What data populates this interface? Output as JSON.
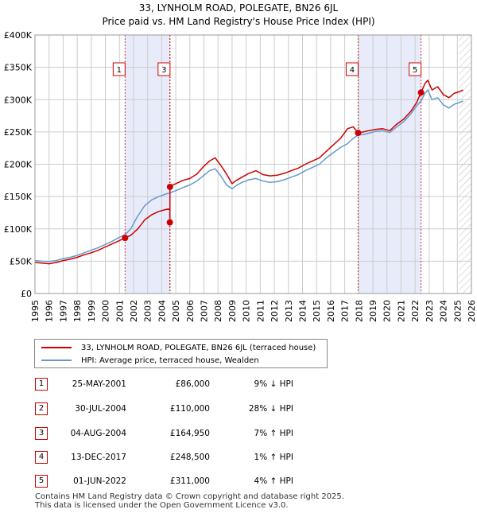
{
  "chart_data": {
    "type": "line",
    "title": "33, LYNHOLM ROAD, POLEGATE, BN26 6JL",
    "subtitle": "Price paid vs. HM Land Registry's House Price Index (HPI)",
    "xlim": [
      1995,
      2026
    ],
    "ylim": [
      0,
      400000
    ],
    "x_ticks": [
      1995,
      1996,
      1997,
      1998,
      1999,
      2000,
      2001,
      2002,
      2003,
      2004,
      2005,
      2006,
      2007,
      2008,
      2009,
      2010,
      2011,
      2012,
      2013,
      2014,
      2015,
      2016,
      2017,
      2018,
      2019,
      2020,
      2021,
      2022,
      2023,
      2024,
      2025,
      2026
    ],
    "y_ticks": [
      {
        "value": 0,
        "label": "£0"
      },
      {
        "value": 50000,
        "label": "£50K"
      },
      {
        "value": 100000,
        "label": "£100K"
      },
      {
        "value": 150000,
        "label": "£150K"
      },
      {
        "value": 200000,
        "label": "£200K"
      },
      {
        "value": 250000,
        "label": "£250K"
      },
      {
        "value": 300000,
        "label": "£300K"
      },
      {
        "value": 350000,
        "label": "£350K"
      },
      {
        "value": 400000,
        "label": "£400K"
      }
    ],
    "shaded_regions": [
      [
        2001.4,
        2004.59
      ],
      [
        2017.95,
        2022.42
      ]
    ],
    "future_hatch_from": 2025.1,
    "colors": {
      "property": "#cc0000",
      "hpi": "#6699cc",
      "shade": "#e8ecfa",
      "grid": "#cccccc"
    },
    "series": [
      {
        "name": "33, LYNHOLM ROAD, POLEGATE, BN26 6JL (terraced house)",
        "color": "#cc0000",
        "x": [
          1995.0,
          1995.5,
          1996.0,
          1996.5,
          1997.0,
          1997.5,
          1998.0,
          1998.5,
          1999.0,
          1999.5,
          2000.0,
          2000.5,
          2001.0,
          2001.4,
          2001.8,
          2002.3,
          2002.8,
          2003.3,
          2003.8,
          2004.3,
          2004.57,
          2004.58,
          2004.59,
          2004.6,
          2005.0,
          2005.5,
          2006.0,
          2006.5,
          2007.0,
          2007.4,
          2007.8,
          2008.2,
          2008.6,
          2009.0,
          2009.3,
          2009.7,
          2010.2,
          2010.7,
          2011.2,
          2011.7,
          2012.2,
          2012.7,
          2013.2,
          2013.7,
          2014.2,
          2014.7,
          2015.2,
          2015.7,
          2016.2,
          2016.7,
          2017.2,
          2017.6,
          2017.95,
          2018.3,
          2018.7,
          2019.2,
          2019.7,
          2020.2,
          2020.7,
          2021.2,
          2021.7,
          2022.1,
          2022.42,
          2022.7,
          2022.9,
          2023.2,
          2023.6,
          2024.0,
          2024.4,
          2024.8,
          2025.1,
          2025.4
        ],
        "values": [
          48000,
          47000,
          46000,
          48000,
          51000,
          53000,
          56000,
          60000,
          63000,
          67000,
          72000,
          77000,
          82000,
          86000,
          90000,
          100000,
          114000,
          122000,
          127000,
          130000,
          131000,
          110000,
          164950,
          166000,
          170000,
          175000,
          178000,
          185000,
          197000,
          205000,
          210000,
          198000,
          185000,
          170000,
          175000,
          180000,
          186000,
          190000,
          184000,
          182000,
          183000,
          186000,
          190000,
          194000,
          200000,
          205000,
          210000,
          220000,
          230000,
          240000,
          255000,
          258000,
          248500,
          250000,
          252000,
          254000,
          255000,
          252000,
          262000,
          270000,
          282000,
          295000,
          311000,
          325000,
          330000,
          315000,
          320000,
          308000,
          303000,
          310000,
          312000,
          315000
        ]
      },
      {
        "name": "HPI: Average price, terraced house, Wealden",
        "color": "#6699cc",
        "x": [
          1995.0,
          1995.5,
          1996.0,
          1996.5,
          1997.0,
          1997.5,
          1998.0,
          1998.5,
          1999.0,
          1999.5,
          2000.0,
          2000.5,
          2001.0,
          2001.4,
          2001.8,
          2002.3,
          2002.8,
          2003.3,
          2003.8,
          2004.3,
          2004.6,
          2005.0,
          2005.5,
          2006.0,
          2006.5,
          2007.0,
          2007.4,
          2007.8,
          2008.2,
          2008.6,
          2009.0,
          2009.3,
          2009.7,
          2010.2,
          2010.7,
          2011.2,
          2011.7,
          2012.2,
          2012.7,
          2013.2,
          2013.7,
          2014.2,
          2014.7,
          2015.2,
          2015.7,
          2016.2,
          2016.7,
          2017.2,
          2017.6,
          2017.95,
          2018.3,
          2018.7,
          2019.2,
          2019.7,
          2020.2,
          2020.7,
          2021.2,
          2021.7,
          2022.1,
          2022.42,
          2022.7,
          2022.9,
          2023.2,
          2023.6,
          2024.0,
          2024.4,
          2024.8,
          2025.1,
          2025.4
        ],
        "values": [
          51000,
          50000,
          49500,
          51000,
          54000,
          56000,
          59000,
          63000,
          67000,
          71000,
          76000,
          81000,
          87000,
          91000,
          100000,
          120000,
          136000,
          145000,
          150000,
          154000,
          156000,
          159000,
          164000,
          168000,
          174000,
          183000,
          190000,
          193000,
          182000,
          168000,
          162000,
          167000,
          172000,
          176000,
          178000,
          174000,
          172000,
          173000,
          176000,
          180000,
          184000,
          190000,
          195000,
          200000,
          210000,
          218000,
          226000,
          232000,
          240000,
          245000,
          246000,
          248000,
          251000,
          252000,
          249000,
          258000,
          266000,
          278000,
          290000,
          298000,
          310000,
          315000,
          300000,
          303000,
          292000,
          287000,
          293000,
          295000,
          298000
        ]
      }
    ],
    "sales": [
      {
        "num": "1",
        "x": 2001.4,
        "price": 86000
      },
      {
        "num": "2",
        "x": 2004.58,
        "price": 110000
      },
      {
        "num": "3",
        "x": 2004.59,
        "price": 164950
      },
      {
        "num": "4",
        "x": 2017.95,
        "price": 248500
      },
      {
        "num": "5",
        "x": 2022.42,
        "price": 311000
      }
    ],
    "markers": [
      {
        "num": "1",
        "x": 2001.4,
        "row": 0
      },
      {
        "num": "3",
        "x": 2004.59,
        "row": 0
      },
      {
        "num": "4",
        "x": 2017.95,
        "row": 0
      },
      {
        "num": "5",
        "x": 2022.42,
        "row": 0
      }
    ]
  },
  "legend": {
    "property_label": "33, LYNHOLM ROAD, POLEGATE, BN26 6JL (terraced house)",
    "hpi_label": "HPI: Average price, terraced house, Wealden"
  },
  "transactions": [
    {
      "num": "1",
      "date": "25-MAY-2001",
      "price": "£86,000",
      "hpi": "9% ↓ HPI"
    },
    {
      "num": "2",
      "date": "30-JUL-2004",
      "price": "£110,000",
      "hpi": "28% ↓ HPI"
    },
    {
      "num": "3",
      "date": "04-AUG-2004",
      "price": "£164,950",
      "hpi": "7% ↑ HPI"
    },
    {
      "num": "4",
      "date": "13-DEC-2017",
      "price": "£248,500",
      "hpi": "1% ↑ HPI"
    },
    {
      "num": "5",
      "date": "01-JUN-2022",
      "price": "£311,000",
      "hpi": "4% ↑ HPI"
    }
  ],
  "footer": {
    "line1": "Contains HM Land Registry data © Crown copyright and database right 2025.",
    "line2": "This data is licensed under the Open Government Licence v3.0."
  }
}
